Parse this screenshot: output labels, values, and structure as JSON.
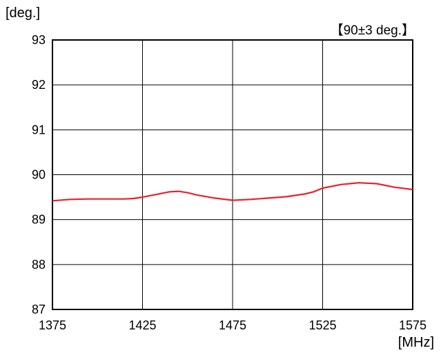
{
  "chart_data": {
    "type": "line",
    "ylabel": "[deg.]",
    "xlabel": "[MHz]",
    "annotation": "【90±3 deg.】",
    "xlim": [
      1375,
      1575
    ],
    "ylim": [
      87,
      93
    ],
    "x_ticks": [
      1375,
      1425,
      1475,
      1525,
      1575
    ],
    "y_ticks": [
      87,
      88,
      89,
      90,
      91,
      92,
      93
    ],
    "grid": true,
    "series": [
      {
        "color": "#e8202a",
        "x": [
          1375,
          1385,
          1395,
          1405,
          1415,
          1420,
          1425,
          1435,
          1440,
          1445,
          1450,
          1455,
          1465,
          1475,
          1485,
          1495,
          1505,
          1515,
          1520,
          1525,
          1535,
          1545,
          1555,
          1565,
          1575
        ],
        "y": [
          89.42,
          89.45,
          89.46,
          89.46,
          89.46,
          89.47,
          89.5,
          89.58,
          89.62,
          89.63,
          89.6,
          89.55,
          89.48,
          89.43,
          89.45,
          89.48,
          89.51,
          89.57,
          89.62,
          89.7,
          89.78,
          89.82,
          89.8,
          89.72,
          89.67
        ]
      }
    ]
  }
}
